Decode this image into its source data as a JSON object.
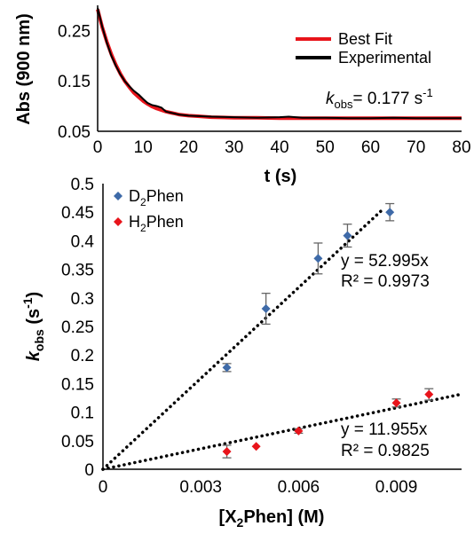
{
  "chart_data": [
    {
      "type": "line",
      "xlabel": "t (s)",
      "ylabel": "Abs (900 nm)",
      "xlim": [
        0,
        80
      ],
      "ylim": [
        0.05,
        0.3
      ],
      "x_ticks": [
        "0",
        "10",
        "20",
        "30",
        "40",
        "50",
        "60",
        "70",
        "80"
      ],
      "y_ticks": [
        "0.05",
        "0.15",
        "0.25"
      ],
      "grid": false,
      "legend_position": "top-right",
      "annotation": {
        "prefix": "k",
        "subscript": "obs",
        "text": "= 0.177 s",
        "superscript": "-1"
      },
      "series": [
        {
          "name": "Best Fit",
          "color": "#e8141b",
          "x": [
            0,
            1,
            2,
            3,
            4,
            5,
            6,
            7,
            8,
            9,
            10,
            11,
            12,
            13,
            14,
            15,
            16,
            17,
            18,
            20,
            22,
            25,
            30,
            35,
            40,
            45,
            50,
            60,
            70,
            80
          ],
          "y": [
            0.292,
            0.257,
            0.228,
            0.203,
            0.182,
            0.164,
            0.149,
            0.137,
            0.126,
            0.118,
            0.11,
            0.104,
            0.099,
            0.095,
            0.092,
            0.089,
            0.087,
            0.085,
            0.083,
            0.081,
            0.08,
            0.078,
            0.077,
            0.077,
            0.076,
            0.076,
            0.076,
            0.076,
            0.076,
            0.076
          ]
        },
        {
          "name": "Experimental",
          "color": "#000000",
          "x": [
            0,
            1,
            2,
            3,
            4,
            5,
            6,
            7,
            8,
            9,
            10,
            11,
            12,
            13,
            14,
            15,
            16,
            18,
            20,
            25,
            30,
            35,
            40,
            42,
            45,
            50,
            55,
            60,
            65,
            70,
            75,
            80
          ],
          "y": [
            0.295,
            0.258,
            0.226,
            0.2,
            0.18,
            0.163,
            0.149,
            0.139,
            0.13,
            0.123,
            0.114,
            0.106,
            0.102,
            0.1,
            0.097,
            0.089,
            0.087,
            0.083,
            0.081,
            0.079,
            0.078,
            0.077,
            0.078,
            0.079,
            0.077,
            0.077,
            0.076,
            0.076,
            0.077,
            0.076,
            0.076,
            0.076
          ]
        }
      ]
    },
    {
      "type": "scatter",
      "xlabel": "[X2Phen] (M)",
      "xlabel_parts": [
        "[X",
        "2",
        "Phen] (M)"
      ],
      "ylabel_parts": [
        "k",
        "obs",
        " (s",
        "-1",
        ")"
      ],
      "xlim": [
        0,
        0.011
      ],
      "ylim": [
        0,
        0.5
      ],
      "x_ticks": [
        "0",
        "0.003",
        "0.006",
        "0.009"
      ],
      "y_ticks": [
        "0",
        "0.05",
        "0.1",
        "0.15",
        "0.2",
        "0.25",
        "0.3",
        "0.35",
        "0.4",
        "0.45",
        "0.5"
      ],
      "grid": false,
      "legend_position": "top-left",
      "series": [
        {
          "name": "D2Phen",
          "name_parts": [
            "D",
            "2",
            "Phen"
          ],
          "color": "#3e6aa8",
          "marker": "diamond",
          "x": [
            0.0038,
            0.005,
            0.0066,
            0.0075,
            0.0088
          ],
          "y": [
            0.178,
            0.281,
            0.369,
            0.409,
            0.45
          ],
          "err": [
            0.007,
            0.027,
            0.027,
            0.02,
            0.015
          ],
          "trendline": {
            "slope": 52.995,
            "equation": "y = 52.995x",
            "r2": "R² = 0.9973"
          }
        },
        {
          "name": "H2Phen",
          "name_parts": [
            "H",
            "2",
            "Phen"
          ],
          "color": "#e8141b",
          "marker": "diamond",
          "x": [
            0.0038,
            0.0047,
            0.006,
            0.009,
            0.01
          ],
          "y": [
            0.031,
            0.04,
            0.067,
            0.116,
            0.131
          ],
          "err": [
            0.011,
            0,
            0.004,
            0.007,
            0.01
          ],
          "trendline": {
            "slope": 11.955,
            "equation": "y = 11.955x",
            "r2": "R² = 0.9825"
          }
        }
      ]
    }
  ]
}
